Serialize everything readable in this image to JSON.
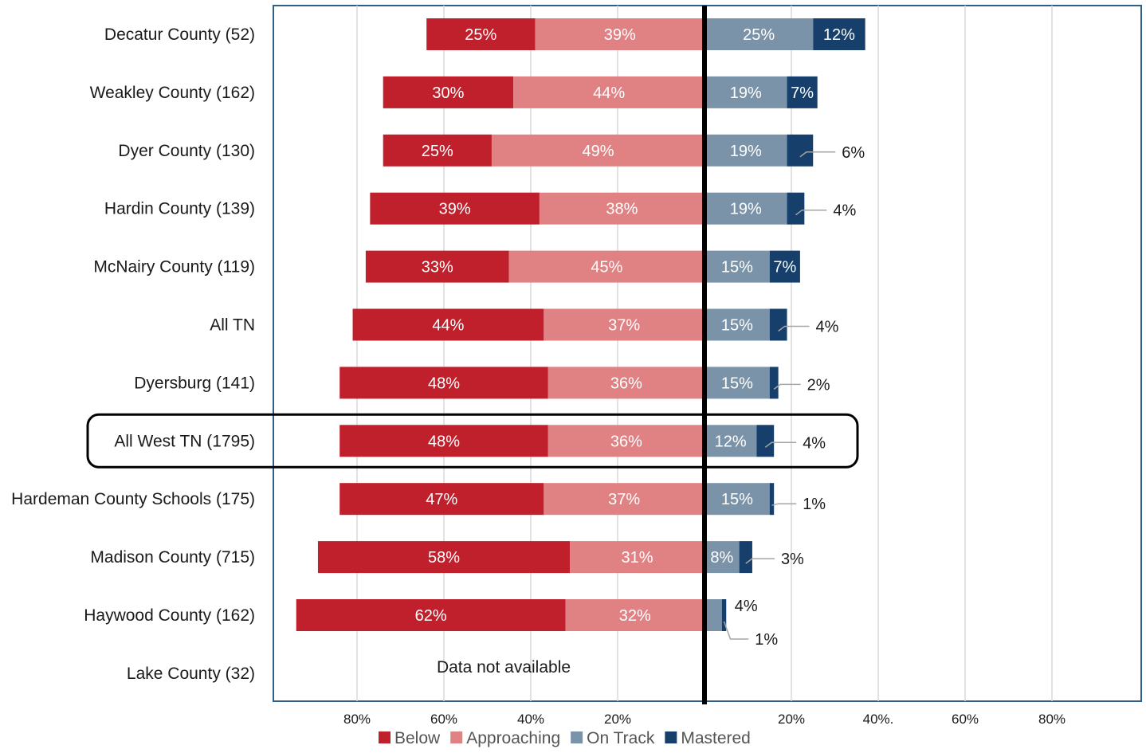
{
  "chart_data": {
    "type": "bar",
    "orientation": "horizontal-diverging",
    "categories": [
      "Decatur County (52)",
      "Weakley County (162)",
      "Dyer County (130)",
      "Hardin County (139)",
      "McNairy County (119)",
      "All TN",
      "Dyersburg (141)",
      "All West TN (1795)",
      "Hardeman County Schools (175)",
      "Madison County (715)",
      "Haywood County (162)",
      "Lake County (32)"
    ],
    "series": [
      {
        "name": "Below",
        "color": "#c0202b",
        "side": "negative",
        "values": [
          25,
          30,
          25,
          39,
          33,
          44,
          48,
          48,
          47,
          58,
          62,
          null
        ]
      },
      {
        "name": "Approaching",
        "color": "#e08284",
        "side": "negative",
        "values": [
          39,
          44,
          49,
          38,
          45,
          37,
          36,
          36,
          37,
          31,
          32,
          null
        ]
      },
      {
        "name": "On Track",
        "color": "#7b93a9",
        "side": "positive",
        "values": [
          25,
          19,
          19,
          19,
          15,
          15,
          15,
          12,
          15,
          8,
          4,
          null
        ]
      },
      {
        "name": "Mastered",
        "color": "#173f6b",
        "side": "positive",
        "values": [
          12,
          7,
          6,
          4,
          7,
          4,
          2,
          4,
          1,
          3,
          1,
          null
        ]
      }
    ],
    "value_labels": {
      "Below": [
        "25%",
        "30%",
        "25%",
        "39%",
        "33%",
        "44%",
        "48%",
        "48%",
        "47%",
        "58%",
        "62%",
        ""
      ],
      "Approaching": [
        "39%",
        "44%",
        "49%",
        "38%",
        "45%",
        "37%",
        "36%",
        "36%",
        "37%",
        "31%",
        "32%",
        ""
      ],
      "On Track": [
        "25%",
        "19%",
        "19%",
        "19%",
        "15%",
        "15%",
        "15%",
        "12%",
        "15%",
        "8%",
        "4%",
        ""
      ],
      "Mastered": [
        "12%",
        "7%",
        "6%",
        "4%",
        "7%",
        "4%",
        "2%",
        "4%",
        "1%",
        "3%",
        "1%",
        ""
      ]
    },
    "xlim": [
      -100,
      100
    ],
    "x_ticks": [
      {
        "value": -80,
        "label": "80%"
      },
      {
        "value": -60,
        "label": "60%"
      },
      {
        "value": -40,
        "label": "40%"
      },
      {
        "value": -20,
        "label": "20%"
      },
      {
        "value": 20,
        "label": "20%"
      },
      {
        "value": 40,
        "label": "40%."
      },
      {
        "value": 60,
        "label": "60%"
      },
      {
        "value": 80,
        "label": "80%"
      }
    ],
    "grid": true,
    "legend_position": "bottom",
    "highlighted_category": "All West TN (1795)",
    "missing_note": {
      "category": "Lake County (32)",
      "text": "Data not available"
    },
    "title": "",
    "xlabel": "",
    "ylabel": ""
  }
}
